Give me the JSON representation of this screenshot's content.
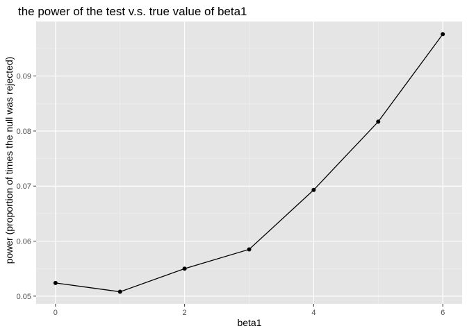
{
  "chart_data": {
    "type": "line",
    "title": "the power of the test v.s. true value of beta1",
    "xlabel": "beta1",
    "ylabel": "power (proportion of times the null was rejected)",
    "x": [
      0,
      1,
      2,
      3,
      4,
      5,
      6
    ],
    "y": [
      0.0524,
      0.0508,
      0.055,
      0.0585,
      0.0693,
      0.0817,
      0.0976
    ],
    "xlim": [
      -0.3,
      6.3
    ],
    "ylim": [
      0.0486,
      0.0999
    ],
    "x_ticks": [
      0,
      2,
      4,
      6
    ],
    "x_tick_labels": [
      "0",
      "2",
      "4",
      "6"
    ],
    "y_ticks": [
      0.05,
      0.06,
      0.07,
      0.08,
      0.09
    ],
    "y_tick_labels": [
      "0.05",
      "0.06",
      "0.07",
      "0.08",
      "0.09"
    ],
    "grid": true,
    "markers": true,
    "colors": {
      "panel": "#e5e5e5",
      "grid_major": "#ffffff",
      "grid_minor": "#f2f2f2",
      "line": "#000000",
      "point": "#000000"
    }
  }
}
